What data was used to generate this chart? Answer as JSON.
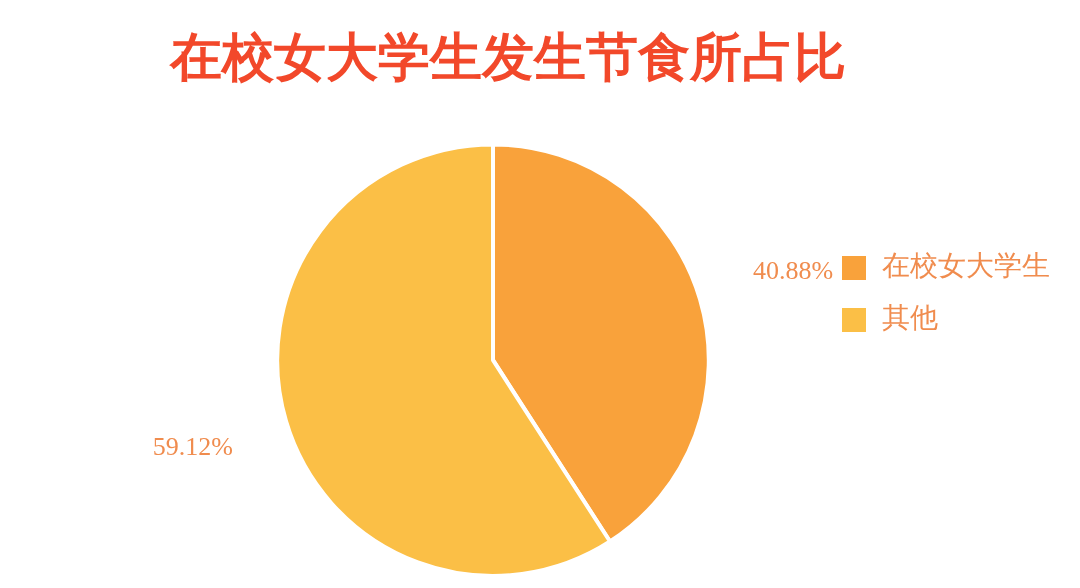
{
  "chart_data": {
    "type": "pie",
    "title": "在校女大学生发生节食所占比",
    "categories": [
      "在校女大学生",
      "其他"
    ],
    "values": [
      40.88,
      59.12
    ],
    "colors": [
      "#f9a23b",
      "#fbbf46"
    ],
    "value_labels": [
      "40.88%",
      "59.12%"
    ],
    "legend": "right"
  }
}
